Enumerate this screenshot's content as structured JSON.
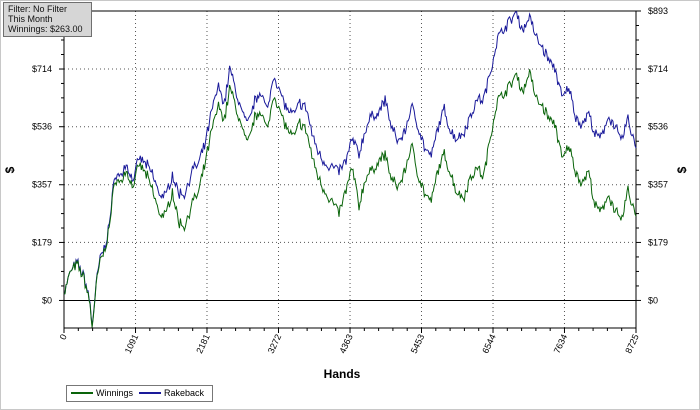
{
  "info": {
    "filter": "Filter: No Filter",
    "period": "This Month",
    "winnings": "Winnings: $263.00"
  },
  "chart_data": {
    "type": "line",
    "xlabel": "Hands",
    "ylabel": "$",
    "ylabel_right": "$",
    "xlim": [
      0,
      8725
    ],
    "ylim": [
      -85,
      893
    ],
    "x_ticks": [
      "0",
      "1091",
      "2181",
      "3272",
      "4363",
      "5453",
      "6544",
      "7634",
      "8725"
    ],
    "x_tick_values": [
      0,
      1091,
      2181,
      3272,
      4363,
      5453,
      6544,
      7634,
      8725
    ],
    "y_ticks": [
      "$0",
      "$179",
      "$357",
      "$536",
      "$714",
      "$893"
    ],
    "y_tick_values": [
      0,
      179,
      357,
      536,
      714,
      893
    ],
    "grid": true,
    "legend": "bottom-left",
    "colors": {
      "Winnings": "#0a640a",
      "Rakeback": "#1a1a9a"
    },
    "series": [
      {
        "name": "Winnings",
        "x": [
          0,
          100,
          200,
          300,
          380,
          430,
          500,
          560,
          620,
          700,
          780,
          850,
          950,
          1050,
          1150,
          1250,
          1350,
          1450,
          1550,
          1650,
          1750,
          1850,
          1950,
          2050,
          2150,
          2250,
          2350,
          2450,
          2530,
          2600,
          2700,
          2800,
          2900,
          3000,
          3100,
          3200,
          3300,
          3400,
          3500,
          3600,
          3700,
          3800,
          3900,
          4000,
          4100,
          4200,
          4300,
          4400,
          4500,
          4600,
          4700,
          4800,
          4900,
          5000,
          5100,
          5200,
          5300,
          5400,
          5500,
          5600,
          5700,
          5800,
          5900,
          6000,
          6100,
          6200,
          6300,
          6400,
          6500,
          6600,
          6700,
          6800,
          6900,
          7000,
          7100,
          7200,
          7300,
          7400,
          7500,
          7600,
          7700,
          7800,
          7900,
          8000,
          8100,
          8200,
          8300,
          8400,
          8500,
          8600,
          8725
        ],
        "values": [
          20,
          90,
          110,
          70,
          10,
          -80,
          60,
          130,
          150,
          240,
          380,
          360,
          400,
          350,
          420,
          390,
          340,
          270,
          260,
          340,
          240,
          230,
          300,
          330,
          420,
          520,
          600,
          560,
          660,
          610,
          540,
          480,
          560,
          590,
          520,
          640,
          580,
          530,
          500,
          550,
          520,
          430,
          370,
          330,
          300,
          270,
          340,
          410,
          290,
          380,
          400,
          430,
          450,
          370,
          350,
          400,
          480,
          390,
          330,
          300,
          400,
          450,
          390,
          330,
          320,
          380,
          410,
          380,
          500,
          610,
          640,
          660,
          700,
          640,
          710,
          620,
          600,
          560,
          540,
          430,
          480,
          400,
          360,
          400,
          290,
          270,
          330,
          280,
          240,
          340,
          260
        ]
      },
      {
        "name": "Rakeback",
        "x": [
          0,
          100,
          200,
          300,
          380,
          430,
          500,
          560,
          620,
          700,
          780,
          850,
          950,
          1050,
          1150,
          1250,
          1350,
          1450,
          1550,
          1650,
          1750,
          1850,
          1950,
          2050,
          2150,
          2250,
          2350,
          2450,
          2530,
          2600,
          2700,
          2800,
          2900,
          3000,
          3100,
          3200,
          3300,
          3400,
          3500,
          3600,
          3700,
          3800,
          3900,
          4000,
          4100,
          4200,
          4300,
          4400,
          4500,
          4600,
          4700,
          4800,
          4900,
          5000,
          5100,
          5200,
          5300,
          5400,
          5500,
          5600,
          5700,
          5800,
          5900,
          6000,
          6100,
          6200,
          6300,
          6400,
          6500,
          6600,
          6700,
          6800,
          6900,
          7000,
          7100,
          7200,
          7300,
          7400,
          7500,
          7600,
          7700,
          7800,
          7900,
          8000,
          8100,
          8200,
          8300,
          8400,
          8500,
          8600,
          8725
        ],
        "values": [
          20,
          90,
          115,
          75,
          15,
          -75,
          65,
          140,
          160,
          250,
          395,
          380,
          420,
          370,
          440,
          420,
          390,
          330,
          320,
          390,
          330,
          330,
          400,
          420,
          480,
          580,
          660,
          610,
          720,
          660,
          590,
          540,
          610,
          650,
          580,
          700,
          640,
          590,
          570,
          610,
          590,
          500,
          450,
          420,
          410,
          400,
          430,
          500,
          450,
          530,
          570,
          580,
          620,
          530,
          490,
          520,
          600,
          540,
          470,
          440,
          530,
          590,
          520,
          500,
          520,
          570,
          620,
          620,
          700,
          800,
          840,
          860,
          890,
          830,
          880,
          810,
          780,
          740,
          710,
          620,
          660,
          570,
          540,
          580,
          510,
          500,
          570,
          540,
          490,
          560,
          470
        ]
      }
    ]
  }
}
